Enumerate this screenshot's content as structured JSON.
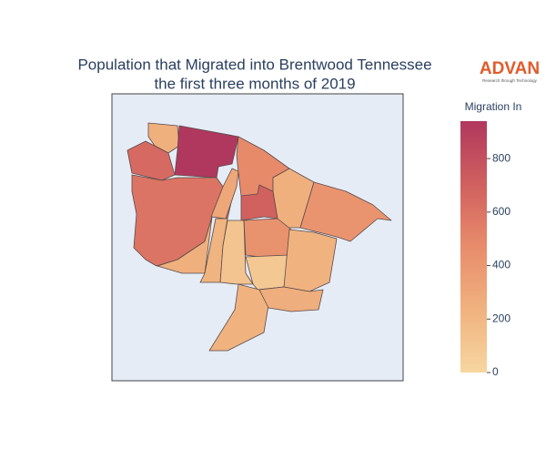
{
  "map": {
    "title_lines": [
      "Population that Migrated into Brentwood Tennessee",
      "the first three months of 2019"
    ],
    "logo": {
      "name": "ADVAN",
      "tagline": "Research through Technology"
    },
    "colorbar": {
      "title": "Migration In",
      "range": [
        0,
        940
      ],
      "ticks": [
        0,
        200,
        400,
        600,
        800
      ],
      "colorscale": [
        [
          0,
          "#f7d6a0"
        ],
        [
          0.25,
          "#f0b27f"
        ],
        [
          0.5,
          "#e88c6b"
        ],
        [
          0.75,
          "#d0605f"
        ],
        [
          1,
          "#b0385e"
        ]
      ]
    },
    "regions": {
      "values": [
        250,
        940,
        650,
        600,
        300,
        480,
        700,
        250,
        420,
        250,
        220,
        120,
        430,
        90,
        230,
        230,
        260
      ]
    }
  }
}
